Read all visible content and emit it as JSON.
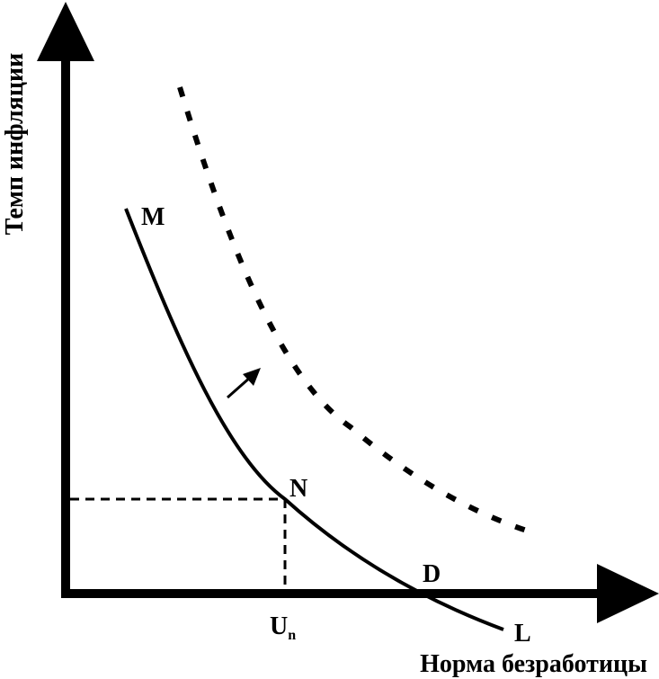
{
  "axes": {
    "y_label": "Темп инфляции",
    "x_label": "Норма безработицы"
  },
  "points": {
    "m": "M",
    "n": "N",
    "d": "D",
    "l": "L",
    "un_main": "U",
    "un_sub": "n"
  },
  "colors": {
    "ink": "#000000",
    "background": "#ffffff"
  }
}
